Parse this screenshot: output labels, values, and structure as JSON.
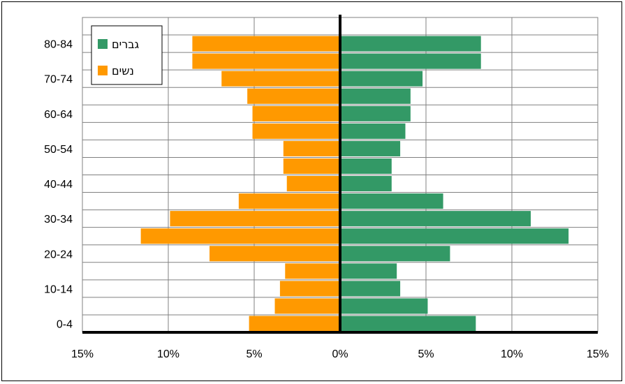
{
  "chart_data": {
    "type": "bar",
    "orientation": "horizontal-diverging",
    "categories": [
      "0-4",
      "5-9",
      "10-14",
      "15-19",
      "20-24",
      "25-29",
      "30-34",
      "35-39",
      "40-44",
      "45-49",
      "50-54",
      "55-59",
      "60-64",
      "65-69",
      "70-74",
      "75-79",
      "80-84",
      "85+"
    ],
    "y_tick_labels": [
      "0-4",
      "10-14",
      "20-24",
      "30-34",
      "40-44",
      "50-54",
      "60-64",
      "70-74",
      "80-84"
    ],
    "series": [
      {
        "name": "גברים",
        "side": "right",
        "color": "#339966",
        "values": [
          7.9,
          5.1,
          3.5,
          3.3,
          6.4,
          13.3,
          11.1,
          6.0,
          3.0,
          3.0,
          3.5,
          3.8,
          4.1,
          4.1,
          4.8,
          8.2,
          8.2,
          0
        ]
      },
      {
        "name": "נשים",
        "side": "left",
        "color": "#FF9900",
        "values": [
          5.3,
          3.8,
          3.5,
          3.2,
          7.6,
          11.6,
          9.9,
          5.9,
          3.1,
          3.3,
          3.3,
          5.1,
          5.1,
          5.4,
          6.9,
          8.6,
          8.6,
          0
        ]
      }
    ],
    "x_tick_labels": [
      "15%",
      "10%",
      "5%",
      "0%",
      "5%",
      "10%",
      "15%"
    ],
    "xlim": [
      -15,
      15
    ],
    "grid": true,
    "legend_position": "top-left",
    "title": "",
    "xlabel": "",
    "ylabel": ""
  }
}
